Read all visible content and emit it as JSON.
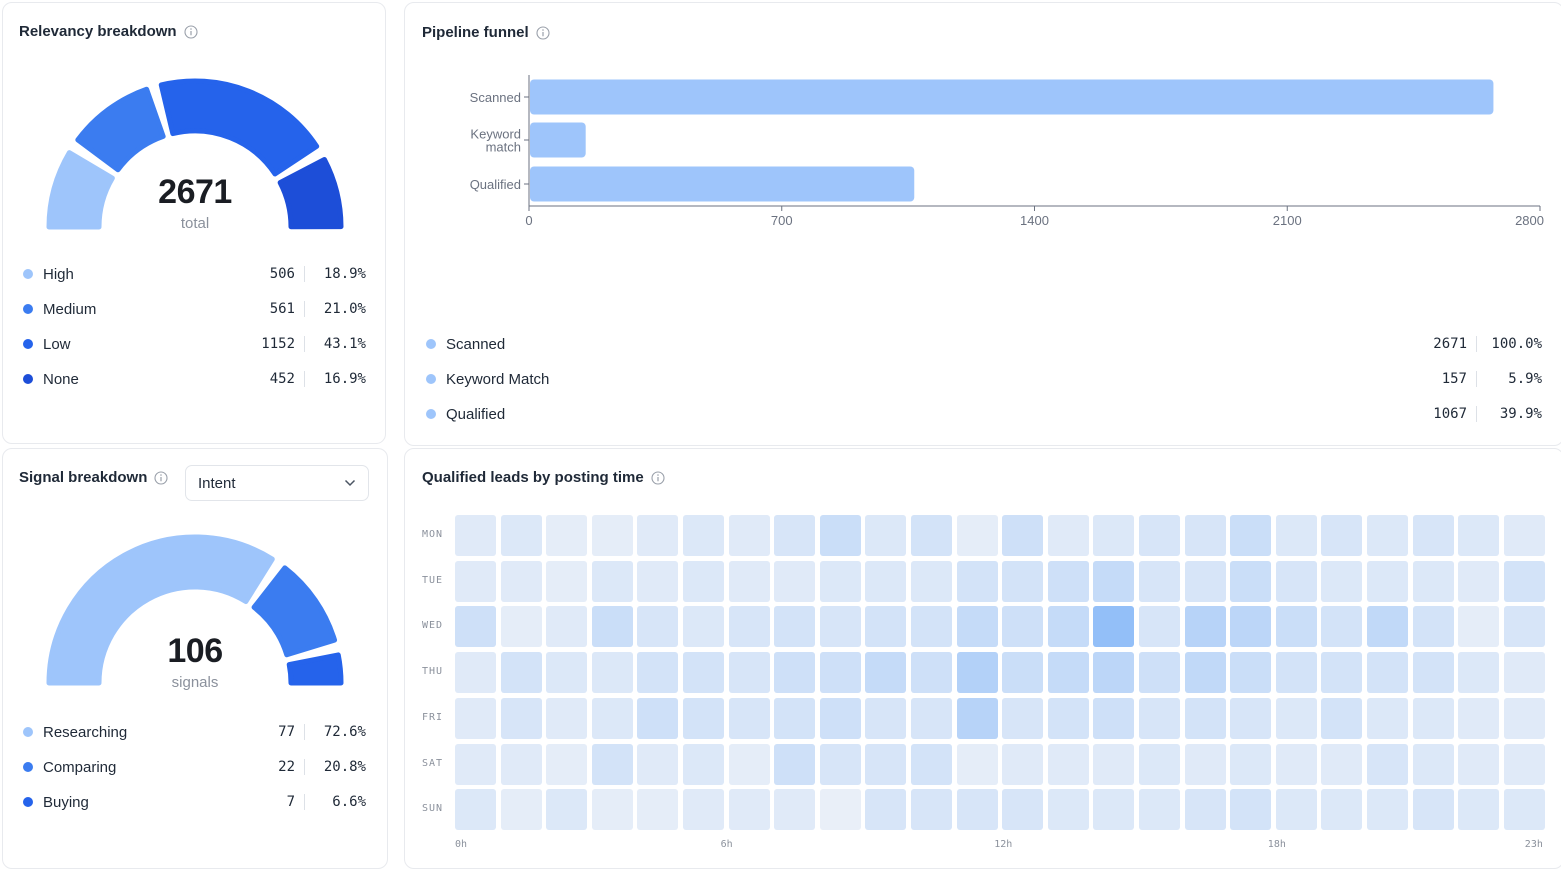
{
  "colors": {
    "high": "#9ec5fb",
    "medium": "#3b7cf0",
    "low": "#2563eb",
    "none": "#1d4ed8",
    "funnel_bar": "#9ec5fb",
    "heat_base": "#eef2f8",
    "heat_max": "#93bff8"
  },
  "relevancy": {
    "title": "Relevancy breakdown",
    "info_icon": "info-icon",
    "total": "2671",
    "total_label": "total",
    "items": [
      {
        "label": "High",
        "value": "506",
        "pct": "18.9%",
        "color": "#9ec5fb",
        "share": 0.189
      },
      {
        "label": "Medium",
        "value": "561",
        "pct": "21.0%",
        "color": "#3b7cf0",
        "share": 0.21
      },
      {
        "label": "Low",
        "value": "1152",
        "pct": "43.1%",
        "color": "#2563eb",
        "share": 0.431
      },
      {
        "label": "None",
        "value": "452",
        "pct": "16.9%",
        "color": "#1d4ed8",
        "share": 0.169
      }
    ]
  },
  "funnel": {
    "title": "Pipeline funnel",
    "info_icon": "info-icon",
    "items": [
      {
        "label": "Scanned",
        "value": "2671",
        "pct": "100.0%"
      },
      {
        "label": "Keyword Match",
        "value": "157",
        "pct": "5.9%"
      },
      {
        "label": "Qualified",
        "value": "1067",
        "pct": "39.9%"
      }
    ]
  },
  "chart_data": {
    "type": "bar",
    "orientation": "horizontal",
    "categories": [
      "Scanned",
      "Keyword match",
      "Qualified"
    ],
    "values": [
      2671,
      157,
      1067
    ],
    "xlim": [
      0,
      2800
    ],
    "xticks": [
      "0",
      "700",
      "1400",
      "2100",
      "2800"
    ],
    "grid": false
  },
  "signal": {
    "title": "Signal breakdown",
    "info_icon": "info-icon",
    "dropdown_value": "Intent",
    "total": "106",
    "total_label": "signals",
    "items": [
      {
        "label": "Researching",
        "value": "77",
        "pct": "72.6%",
        "color": "#9ec5fb",
        "share": 0.726
      },
      {
        "label": "Comparing",
        "value": "22",
        "pct": "20.8%",
        "color": "#3b7cf0",
        "share": 0.208
      },
      {
        "label": "Buying",
        "value": "7",
        "pct": "6.6%",
        "color": "#2563eb",
        "share": 0.066
      }
    ]
  },
  "heatmap": {
    "title": "Qualified leads by posting time",
    "info_icon": "info-icon",
    "days": [
      "MON",
      "TUE",
      "WED",
      "THU",
      "FRI",
      "SAT",
      "SUN"
    ],
    "hour_ticks": [
      {
        "label": "0h",
        "hour": 0
      },
      {
        "label": "6h",
        "hour": 6
      },
      {
        "label": "12h",
        "hour": 12
      },
      {
        "label": "18h",
        "hour": 18
      },
      {
        "label": "23h",
        "hour": 23
      }
    ],
    "intensity": [
      [
        0.15,
        0.2,
        0.1,
        0.1,
        0.15,
        0.2,
        0.15,
        0.25,
        0.4,
        0.2,
        0.3,
        0.1,
        0.35,
        0.15,
        0.2,
        0.25,
        0.25,
        0.4,
        0.2,
        0.25,
        0.2,
        0.25,
        0.2,
        0.15
      ],
      [
        0.15,
        0.15,
        0.1,
        0.2,
        0.15,
        0.2,
        0.15,
        0.15,
        0.2,
        0.2,
        0.2,
        0.3,
        0.3,
        0.35,
        0.45,
        0.25,
        0.25,
        0.4,
        0.25,
        0.2,
        0.2,
        0.2,
        0.15,
        0.3
      ],
      [
        0.35,
        0.1,
        0.15,
        0.4,
        0.25,
        0.2,
        0.25,
        0.3,
        0.25,
        0.3,
        0.3,
        0.45,
        0.35,
        0.45,
        1.0,
        0.25,
        0.6,
        0.55,
        0.4,
        0.3,
        0.5,
        0.3,
        0.1,
        0.25
      ],
      [
        0.15,
        0.3,
        0.2,
        0.2,
        0.3,
        0.3,
        0.25,
        0.35,
        0.35,
        0.45,
        0.35,
        0.65,
        0.4,
        0.45,
        0.55,
        0.35,
        0.5,
        0.4,
        0.3,
        0.3,
        0.3,
        0.3,
        0.2,
        0.15
      ],
      [
        0.15,
        0.25,
        0.15,
        0.2,
        0.35,
        0.3,
        0.25,
        0.3,
        0.35,
        0.25,
        0.25,
        0.6,
        0.25,
        0.3,
        0.35,
        0.25,
        0.3,
        0.25,
        0.2,
        0.3,
        0.2,
        0.2,
        0.15,
        0.15
      ],
      [
        0.15,
        0.15,
        0.1,
        0.3,
        0.15,
        0.2,
        0.1,
        0.35,
        0.25,
        0.25,
        0.3,
        0.1,
        0.15,
        0.15,
        0.15,
        0.2,
        0.15,
        0.2,
        0.15,
        0.15,
        0.25,
        0.2,
        0.15,
        0.15
      ],
      [
        0.2,
        0.1,
        0.2,
        0.1,
        0.1,
        0.15,
        0.15,
        0.15,
        0.05,
        0.25,
        0.25,
        0.25,
        0.25,
        0.2,
        0.2,
        0.2,
        0.25,
        0.3,
        0.2,
        0.2,
        0.2,
        0.25,
        0.2,
        0.2
      ]
    ]
  }
}
